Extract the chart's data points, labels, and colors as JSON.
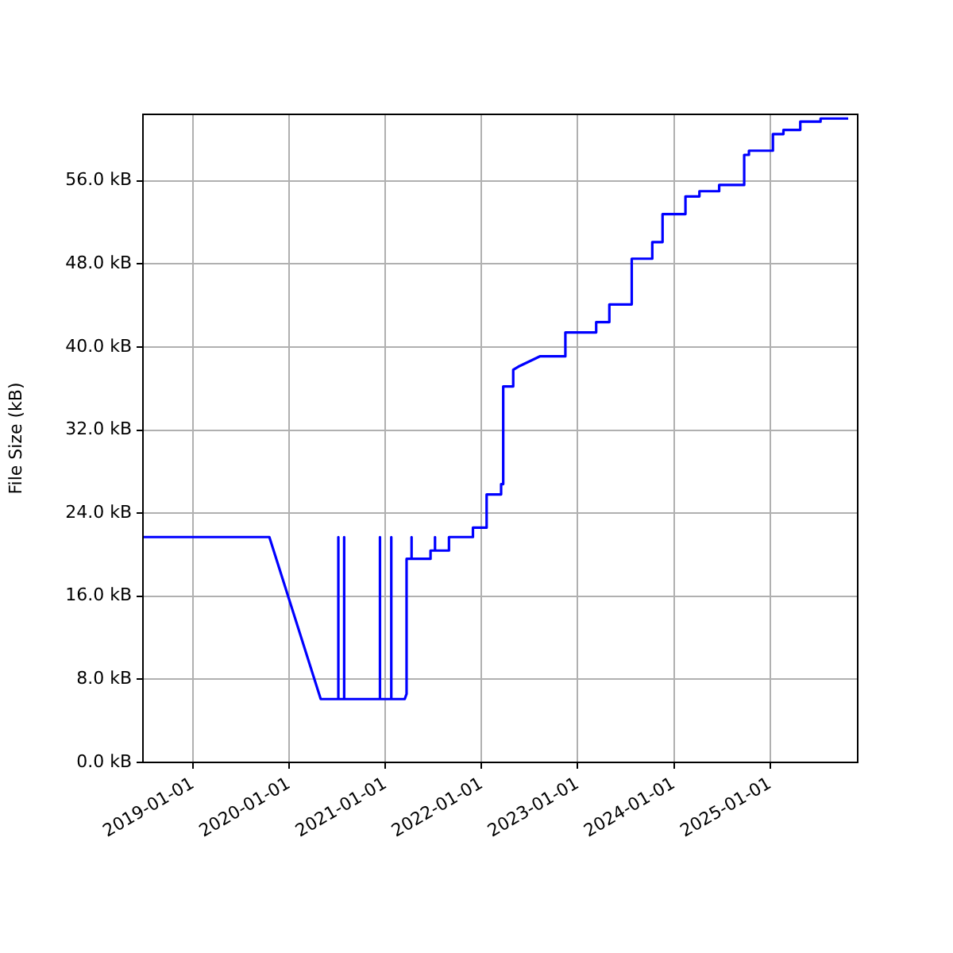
{
  "chart_data": {
    "type": "line",
    "ylabel": "File Size (kB)",
    "xlim": [
      "2018-06-25",
      "2025-11-29"
    ],
    "ylim": [
      0,
      62.4
    ],
    "xticks": [
      "2019-01-01",
      "2020-01-01",
      "2021-01-01",
      "2022-01-01",
      "2023-01-01",
      "2024-01-01",
      "2025-01-01"
    ],
    "yticks": [
      {
        "value": 0,
        "label": "0.0 kB"
      },
      {
        "value": 8,
        "label": "8.0 kB"
      },
      {
        "value": 16,
        "label": "16.0 kB"
      },
      {
        "value": 24,
        "label": "24.0 kB"
      },
      {
        "value": 32,
        "label": "32.0 kB"
      },
      {
        "value": 40,
        "label": "40.0 kB"
      },
      {
        "value": 48,
        "label": "48.0 kB"
      },
      {
        "value": 56,
        "label": "56.0 kB"
      }
    ],
    "grid": true,
    "legend": false,
    "marker": "none",
    "line_style": "solid",
    "series": [
      {
        "color": "#0000ff",
        "x": [
          "2018-06-25",
          "2019-10-18",
          "2020-04-30",
          "2020-07-06",
          "2020-07-06",
          "2020-07-06",
          "2020-07-28",
          "2020-07-28",
          "2020-07-28",
          "2020-12-11",
          "2020-12-11",
          "2020-12-11",
          "2021-01-23",
          "2021-01-23",
          "2021-01-23",
          "2021-03-15",
          "2021-03-22",
          "2021-03-22",
          "2021-04-10",
          "2021-04-10",
          "2021-04-10",
          "2021-06-21",
          "2021-06-21",
          "2021-07-08",
          "2021-07-08",
          "2021-07-08",
          "2021-08-30",
          "2021-08-30",
          "2021-11-29",
          "2021-11-29",
          "2022-01-20",
          "2022-01-20",
          "2022-03-16",
          "2022-03-16",
          "2022-03-24",
          "2022-03-24",
          "2022-05-01",
          "2022-05-01",
          "2022-05-20",
          "2022-08-10",
          "2022-11-15",
          "2022-11-15",
          "2023-03-12",
          "2023-03-12",
          "2023-05-01",
          "2023-05-01",
          "2023-07-25",
          "2023-07-25",
          "2023-10-11",
          "2023-10-11",
          "2023-11-19",
          "2023-11-19",
          "2024-02-14",
          "2024-02-14",
          "2024-04-07",
          "2024-04-07",
          "2024-06-21",
          "2024-06-21",
          "2024-09-24",
          "2024-09-24",
          "2024-10-12",
          "2024-10-12",
          "2025-01-11",
          "2025-01-11",
          "2025-02-20",
          "2025-02-20",
          "2025-04-25",
          "2025-04-25",
          "2025-07-11",
          "2025-07-11",
          "2025-10-24"
        ],
        "values": [
          21.7,
          21.7,
          6.1,
          6.1,
          21.7,
          6.1,
          6.1,
          21.7,
          6.1,
          6.1,
          21.7,
          6.1,
          6.1,
          21.7,
          6.1,
          6.1,
          6.6,
          19.6,
          19.6,
          21.7,
          19.6,
          19.6,
          20.4,
          20.4,
          21.7,
          20.4,
          20.4,
          21.7,
          21.7,
          22.6,
          22.6,
          25.8,
          25.8,
          26.8,
          26.8,
          36.2,
          36.2,
          37.8,
          38.1,
          39.1,
          39.1,
          41.4,
          41.4,
          42.4,
          42.4,
          44.1,
          44.1,
          48.5,
          48.5,
          50.1,
          50.1,
          52.8,
          52.8,
          54.5,
          54.5,
          55.0,
          55.0,
          55.6,
          55.6,
          58.5,
          58.5,
          58.9,
          58.9,
          60.5,
          60.5,
          60.9,
          60.9,
          61.7,
          61.7,
          62.0,
          62.0
        ]
      }
    ]
  }
}
